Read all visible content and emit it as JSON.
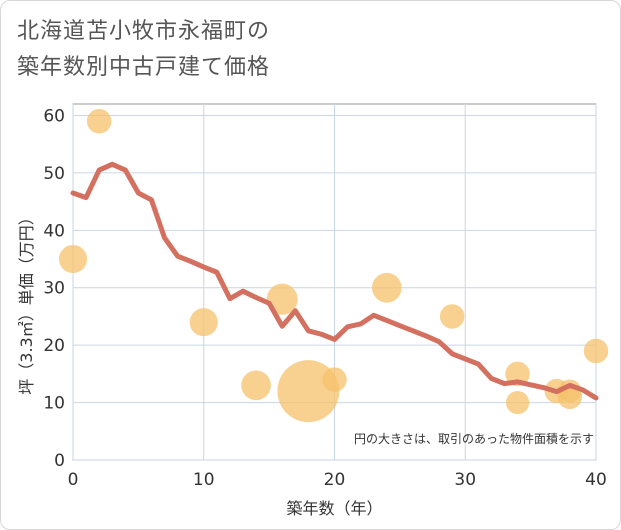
{
  "chart_data": {
    "type": "scatter",
    "title": "北海道苫小牧市永福町の\n築年数別中古戸建て価格",
    "xlabel": "築年数（年）",
    "ylabel": "坪（3.3㎡）単価（万円）",
    "xlim": [
      0,
      40
    ],
    "ylim": [
      0,
      62
    ],
    "xticks": [
      0,
      10,
      20,
      30,
      40
    ],
    "yticks": [
      0,
      10,
      20,
      30,
      40,
      50,
      60
    ],
    "grid": true,
    "annotation": "円の大きさは、取引のあった物件面積を示す",
    "colors": {
      "line": "#d4705f",
      "bubble": "#f5c26b"
    },
    "line": {
      "x": [
        0,
        1,
        2,
        3,
        4,
        5,
        6,
        7,
        8,
        9,
        10,
        11,
        12,
        13,
        14,
        15,
        16,
        17,
        18,
        19,
        20,
        21,
        22,
        23,
        24,
        25,
        26,
        27,
        28,
        29,
        30,
        31,
        32,
        33,
        34,
        35,
        36,
        37,
        38,
        39,
        40
      ],
      "y": [
        46.5,
        45.7,
        50.5,
        51.5,
        50.5,
        46.5,
        45.3,
        38.7,
        35.5,
        34.6,
        33.6,
        32.7,
        28.1,
        29.4,
        28.3,
        27.3,
        23.3,
        26.0,
        22.5,
        21.9,
        21.0,
        23.2,
        23.7,
        25.2,
        24.3,
        23.4,
        22.5,
        21.6,
        20.6,
        18.5,
        17.6,
        16.7,
        14.2,
        13.3,
        13.6,
        13.1,
        12.6,
        11.9,
        13.0,
        12.2,
        10.8
      ]
    },
    "points": [
      {
        "x": 0,
        "y": 35,
        "size": 2.5
      },
      {
        "x": 2,
        "y": 59,
        "size": 1.5
      },
      {
        "x": 10,
        "y": 24,
        "size": 2.5
      },
      {
        "x": 14,
        "y": 13,
        "size": 3
      },
      {
        "x": 16,
        "y": 28,
        "size": 3.5
      },
      {
        "x": 18,
        "y": 12,
        "size": 24
      },
      {
        "x": 20,
        "y": 14,
        "size": 1.5
      },
      {
        "x": 24,
        "y": 30,
        "size": 3
      },
      {
        "x": 29,
        "y": 25,
        "size": 1.5
      },
      {
        "x": 34,
        "y": 15,
        "size": 1.5
      },
      {
        "x": 34,
        "y": 10,
        "size": 1.2
      },
      {
        "x": 37,
        "y": 12,
        "size": 1.5
      },
      {
        "x": 38,
        "y": 11,
        "size": 1.5
      },
      {
        "x": 38,
        "y": 12,
        "size": 1.2
      },
      {
        "x": 40,
        "y": 19,
        "size": 1.5
      }
    ]
  }
}
